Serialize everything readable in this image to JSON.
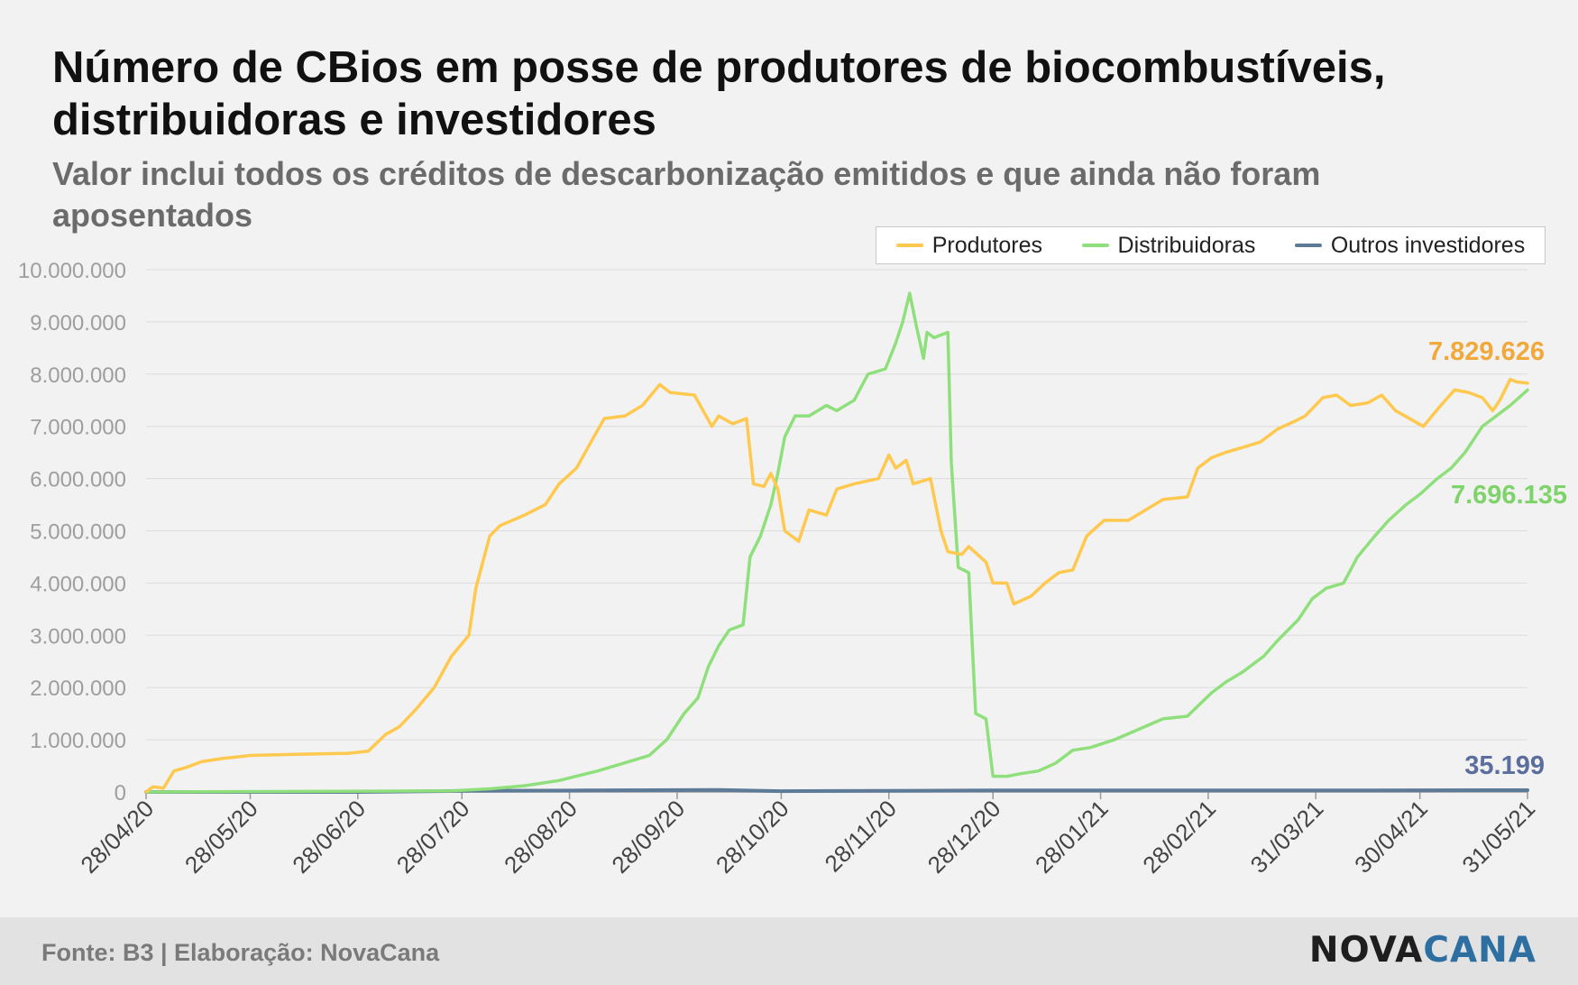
{
  "title": "Número de CBios em posse de produtores de biocombustíveis, distribuidoras e investidores",
  "subtitle": "Valor inclui todos os créditos de descarbonização emitidos e que ainda não foram aposentados",
  "footer": {
    "source": "Fonte: B3 | Elaboração: NovaCana",
    "logo_part1": "NOVA",
    "logo_part2": "CANA"
  },
  "colors": {
    "Produtores": "#ffc84e",
    "Distribuidoras": "#8fe07c",
    "Outros investidores": "#5d7a97",
    "label_Produtores": "#f0a93a",
    "label_Distribuidoras": "#7ed36a",
    "label_Outros investidores": "#5b6e9e"
  },
  "chart_data": {
    "type": "line",
    "legend_position": "top-right",
    "grid": true,
    "ylim": [
      0,
      10000000
    ],
    "yticks": [
      0,
      1000000,
      2000000,
      3000000,
      4000000,
      5000000,
      6000000,
      7000000,
      8000000,
      9000000,
      10000000
    ],
    "ytick_labels": [
      "0",
      "1.000.000",
      "2.000.000",
      "3.000.000",
      "4.000.000",
      "5.000.000",
      "6.000.000",
      "7.000.000",
      "8.000.000",
      "9.000.000",
      "10.000.000"
    ],
    "xlim": [
      "2020-04-28",
      "2021-05-31"
    ],
    "xticks": [
      "2020-04-28",
      "2020-05-28",
      "2020-06-28",
      "2020-07-28",
      "2020-08-28",
      "2020-09-28",
      "2020-10-28",
      "2020-11-28",
      "2020-12-28",
      "2021-01-28",
      "2021-02-28",
      "2021-03-31",
      "2021-04-30",
      "2021-05-31"
    ],
    "xtick_labels": [
      "28/04/20",
      "28/05/20",
      "28/06/20",
      "28/07/20",
      "28/08/20",
      "28/09/20",
      "28/10/20",
      "28/11/20",
      "28/12/20",
      "28/01/21",
      "28/02/21",
      "31/03/21",
      "30/04/21",
      "31/05/21"
    ],
    "series": [
      {
        "name": "Produtores",
        "end_label": "7.829.626",
        "points": [
          [
            "2020-04-28",
            0
          ],
          [
            "2020-04-30",
            100000
          ],
          [
            "2020-05-03",
            70000
          ],
          [
            "2020-05-06",
            400000
          ],
          [
            "2020-05-10",
            480000
          ],
          [
            "2020-05-14",
            580000
          ],
          [
            "2020-05-20",
            640000
          ],
          [
            "2020-05-28",
            700000
          ],
          [
            "2020-06-10",
            720000
          ],
          [
            "2020-06-25",
            740000
          ],
          [
            "2020-07-01",
            780000
          ],
          [
            "2020-07-06",
            1100000
          ],
          [
            "2020-07-10",
            1250000
          ],
          [
            "2020-07-15",
            1600000
          ],
          [
            "2020-07-20",
            2000000
          ],
          [
            "2020-07-25",
            2600000
          ],
          [
            "2020-07-30",
            3000000
          ],
          [
            "2020-08-01",
            3900000
          ],
          [
            "2020-08-05",
            4900000
          ],
          [
            "2020-08-08",
            5100000
          ],
          [
            "2020-08-15",
            5300000
          ],
          [
            "2020-08-21",
            5500000
          ],
          [
            "2020-08-25",
            5900000
          ],
          [
            "2020-08-30",
            6200000
          ],
          [
            "2020-09-04",
            6800000
          ],
          [
            "2020-09-07",
            7150000
          ],
          [
            "2020-09-13",
            7200000
          ],
          [
            "2020-09-18",
            7400000
          ],
          [
            "2020-09-23",
            7800000
          ],
          [
            "2020-09-26",
            7650000
          ],
          [
            "2020-10-03",
            7600000
          ],
          [
            "2020-10-08",
            7000000
          ],
          [
            "2020-10-10",
            7200000
          ],
          [
            "2020-10-14",
            7050000
          ],
          [
            "2020-10-18",
            7150000
          ],
          [
            "2020-10-20",
            5900000
          ],
          [
            "2020-10-23",
            5850000
          ],
          [
            "2020-10-25",
            6100000
          ],
          [
            "2020-10-27",
            5800000
          ],
          [
            "2020-10-29",
            5000000
          ],
          [
            "2020-11-02",
            4800000
          ],
          [
            "2020-11-05",
            5400000
          ],
          [
            "2020-11-10",
            5300000
          ],
          [
            "2020-11-13",
            5800000
          ],
          [
            "2020-11-18",
            5900000
          ],
          [
            "2020-11-25",
            6000000
          ],
          [
            "2020-11-28",
            6450000
          ],
          [
            "2020-11-30",
            6200000
          ],
          [
            "2020-12-03",
            6350000
          ],
          [
            "2020-12-05",
            5900000
          ],
          [
            "2020-12-10",
            6000000
          ],
          [
            "2020-12-13",
            5000000
          ],
          [
            "2020-12-15",
            4600000
          ],
          [
            "2020-12-19",
            4550000
          ],
          [
            "2020-12-21",
            4700000
          ],
          [
            "2020-12-26",
            4400000
          ],
          [
            "2020-12-28",
            4000000
          ],
          [
            "2021-01-01",
            4000000
          ],
          [
            "2021-01-03",
            3600000
          ],
          [
            "2021-01-08",
            3750000
          ],
          [
            "2021-01-12",
            4000000
          ],
          [
            "2021-01-16",
            4200000
          ],
          [
            "2021-01-20",
            4250000
          ],
          [
            "2021-01-24",
            4900000
          ],
          [
            "2021-01-29",
            5200000
          ],
          [
            "2021-02-05",
            5200000
          ],
          [
            "2021-02-10",
            5400000
          ],
          [
            "2021-02-15",
            5600000
          ],
          [
            "2021-02-22",
            5650000
          ],
          [
            "2021-02-25",
            6200000
          ],
          [
            "2021-03-01",
            6400000
          ],
          [
            "2021-03-05",
            6500000
          ],
          [
            "2021-03-10",
            6600000
          ],
          [
            "2021-03-15",
            6700000
          ],
          [
            "2021-03-20",
            6950000
          ],
          [
            "2021-03-25",
            7100000
          ],
          [
            "2021-03-28",
            7200000
          ],
          [
            "2021-04-02",
            7550000
          ],
          [
            "2021-04-06",
            7600000
          ],
          [
            "2021-04-10",
            7400000
          ],
          [
            "2021-04-15",
            7450000
          ],
          [
            "2021-04-19",
            7600000
          ],
          [
            "2021-04-23",
            7300000
          ],
          [
            "2021-05-01",
            7000000
          ],
          [
            "2021-05-06",
            7400000
          ],
          [
            "2021-05-10",
            7700000
          ],
          [
            "2021-05-14",
            7650000
          ],
          [
            "2021-05-18",
            7550000
          ],
          [
            "2021-05-21",
            7300000
          ],
          [
            "2021-05-23",
            7500000
          ],
          [
            "2021-05-26",
            7900000
          ],
          [
            "2021-05-28",
            7850000
          ],
          [
            "2021-05-31",
            7829626
          ]
        ]
      },
      {
        "name": "Distribuidoras",
        "end_label": "7.696.135",
        "points": [
          [
            "2020-04-28",
            0
          ],
          [
            "2020-07-25",
            20000
          ],
          [
            "2020-08-05",
            60000
          ],
          [
            "2020-08-15",
            120000
          ],
          [
            "2020-08-25",
            220000
          ],
          [
            "2020-09-05",
            400000
          ],
          [
            "2020-09-15",
            600000
          ],
          [
            "2020-09-20",
            700000
          ],
          [
            "2020-09-25",
            1000000
          ],
          [
            "2020-09-30",
            1500000
          ],
          [
            "2020-10-04",
            1800000
          ],
          [
            "2020-10-07",
            2400000
          ],
          [
            "2020-10-10",
            2800000
          ],
          [
            "2020-10-13",
            3100000
          ],
          [
            "2020-10-17",
            3200000
          ],
          [
            "2020-10-19",
            4500000
          ],
          [
            "2020-10-22",
            4900000
          ],
          [
            "2020-10-25",
            5500000
          ],
          [
            "2020-10-27",
            6100000
          ],
          [
            "2020-10-29",
            6800000
          ],
          [
            "2020-11-01",
            7200000
          ],
          [
            "2020-11-05",
            7200000
          ],
          [
            "2020-11-10",
            7400000
          ],
          [
            "2020-11-13",
            7300000
          ],
          [
            "2020-11-18",
            7500000
          ],
          [
            "2020-11-22",
            8000000
          ],
          [
            "2020-11-27",
            8100000
          ],
          [
            "2020-11-30",
            8600000
          ],
          [
            "2020-12-02",
            9000000
          ],
          [
            "2020-12-04",
            9550000
          ],
          [
            "2020-12-06",
            8900000
          ],
          [
            "2020-12-08",
            8300000
          ],
          [
            "2020-12-09",
            8800000
          ],
          [
            "2020-12-11",
            8700000
          ],
          [
            "2020-12-13",
            8750000
          ],
          [
            "2020-12-15",
            8800000
          ],
          [
            "2020-12-16",
            6300000
          ],
          [
            "2020-12-18",
            4300000
          ],
          [
            "2020-12-21",
            4200000
          ],
          [
            "2020-12-23",
            1500000
          ],
          [
            "2020-12-26",
            1400000
          ],
          [
            "2020-12-28",
            300000
          ],
          [
            "2021-01-01",
            300000
          ],
          [
            "2021-01-05",
            350000
          ],
          [
            "2021-01-10",
            400000
          ],
          [
            "2021-01-15",
            550000
          ],
          [
            "2021-01-20",
            800000
          ],
          [
            "2021-01-25",
            850000
          ],
          [
            "2021-02-01",
            1000000
          ],
          [
            "2021-02-08",
            1200000
          ],
          [
            "2021-02-15",
            1400000
          ],
          [
            "2021-02-22",
            1450000
          ],
          [
            "2021-03-01",
            1900000
          ],
          [
            "2021-03-05",
            2100000
          ],
          [
            "2021-03-10",
            2300000
          ],
          [
            "2021-03-16",
            2600000
          ],
          [
            "2021-03-20",
            2900000
          ],
          [
            "2021-03-26",
            3300000
          ],
          [
            "2021-03-30",
            3700000
          ],
          [
            "2021-04-03",
            3900000
          ],
          [
            "2021-04-08",
            4000000
          ],
          [
            "2021-04-12",
            4500000
          ],
          [
            "2021-04-17",
            4900000
          ],
          [
            "2021-04-21",
            5200000
          ],
          [
            "2021-04-26",
            5500000
          ],
          [
            "2021-04-30",
            5700000
          ],
          [
            "2021-05-05",
            6000000
          ],
          [
            "2021-05-09",
            6200000
          ],
          [
            "2021-05-13",
            6500000
          ],
          [
            "2021-05-18",
            7000000
          ],
          [
            "2021-05-22",
            7200000
          ],
          [
            "2021-05-26",
            7400000
          ],
          [
            "2021-05-31",
            7696135
          ]
        ]
      },
      {
        "name": "Outros investidores",
        "end_label": "35.199",
        "points": [
          [
            "2020-04-28",
            0
          ],
          [
            "2020-06-28",
            0
          ],
          [
            "2020-07-28",
            20000
          ],
          [
            "2020-09-01",
            30000
          ],
          [
            "2020-10-10",
            40000
          ],
          [
            "2020-10-28",
            15000
          ],
          [
            "2020-12-28",
            30000
          ],
          [
            "2021-03-31",
            30000
          ],
          [
            "2021-05-31",
            35199
          ]
        ]
      }
    ]
  }
}
